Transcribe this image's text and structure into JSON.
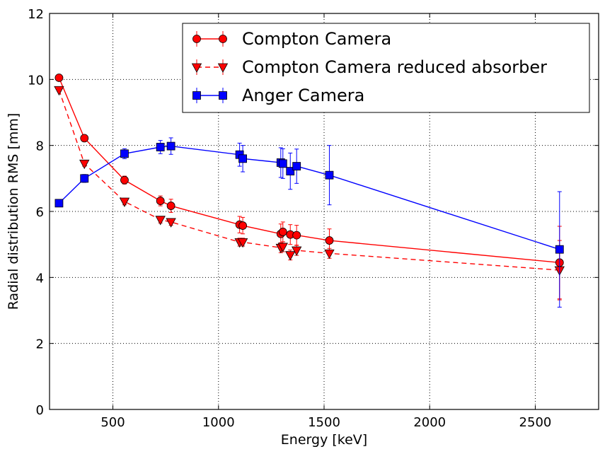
{
  "chart_data": {
    "type": "line",
    "xlabel": "Energy [keV]",
    "ylabel": "Radial distribution RMS [mm]",
    "xlim": [
      200,
      2800
    ],
    "ylim": [
      0,
      12
    ],
    "xticks": [
      500,
      1000,
      1500,
      2000,
      2500
    ],
    "yticks": [
      0,
      2,
      4,
      6,
      8,
      10,
      12
    ],
    "grid": true,
    "legend_position": "top-right",
    "series": [
      {
        "name": "Compton Camera",
        "color": "#ff0000",
        "marker": "circle",
        "linestyle": "solid",
        "x": [
          245,
          365,
          555,
          725,
          775,
          1100,
          1115,
          1295,
          1305,
          1340,
          1370,
          1525,
          2615
        ],
        "y": [
          10.05,
          8.22,
          6.95,
          6.32,
          6.17,
          5.6,
          5.57,
          5.32,
          5.38,
          5.3,
          5.28,
          5.12,
          4.45
        ],
        "yerr": [
          0.05,
          0.1,
          0.12,
          0.15,
          0.2,
          0.25,
          0.25,
          0.3,
          0.3,
          0.3,
          0.3,
          0.35,
          1.1
        ]
      },
      {
        "name": "Compton Camera reduced absorber",
        "color": "#ff0000",
        "marker": "triangle-down",
        "linestyle": "dashed",
        "x": [
          245,
          365,
          555,
          725,
          775,
          1100,
          1115,
          1295,
          1305,
          1340,
          1370,
          1525,
          2615
        ],
        "y": [
          9.68,
          7.45,
          6.3,
          5.75,
          5.68,
          5.07,
          5.07,
          4.9,
          4.93,
          4.68,
          4.82,
          4.73,
          4.22
        ],
        "yerr": [
          0.05,
          0.08,
          0.1,
          0.1,
          0.1,
          0.12,
          0.12,
          0.15,
          0.15,
          0.15,
          0.15,
          0.15,
          0.9
        ]
      },
      {
        "name": "Anger Camera",
        "color": "#0000ff",
        "marker": "square",
        "linestyle": "solid",
        "x": [
          245,
          365,
          555,
          725,
          775,
          1100,
          1115,
          1295,
          1305,
          1340,
          1370,
          1525,
          2615
        ],
        "y": [
          6.25,
          7.0,
          7.75,
          7.95,
          7.98,
          7.72,
          7.6,
          7.48,
          7.45,
          7.22,
          7.37,
          7.1,
          4.85
        ],
        "yerr": [
          0.1,
          0.12,
          0.15,
          0.2,
          0.25,
          0.35,
          0.4,
          0.45,
          0.45,
          0.55,
          0.52,
          0.9,
          1.75
        ]
      }
    ]
  }
}
